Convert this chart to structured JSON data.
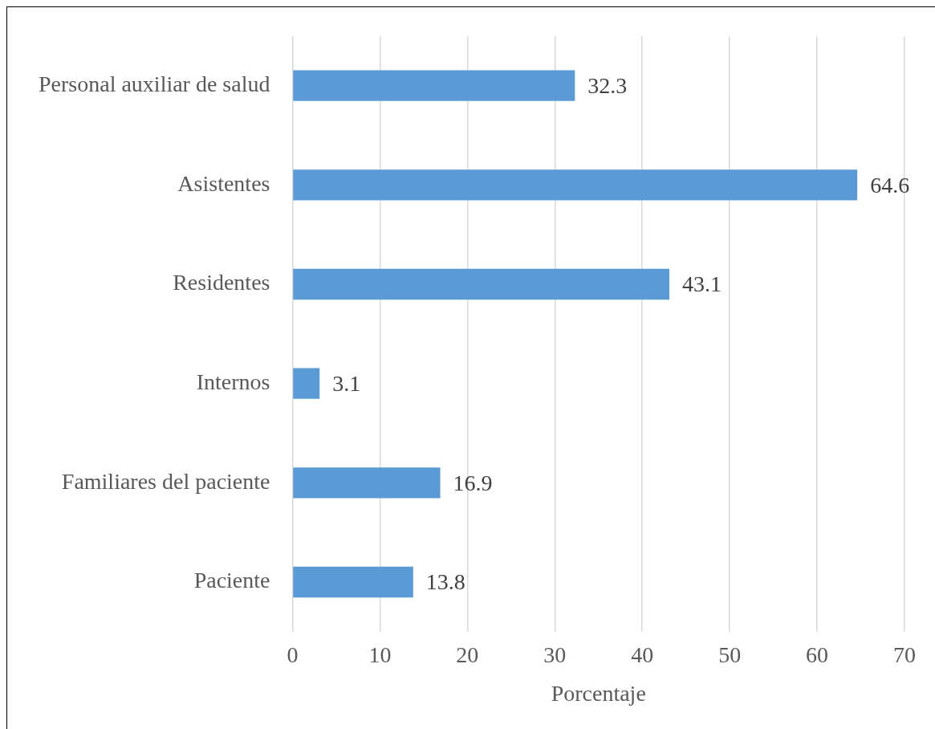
{
  "chart_data": {
    "type": "bar",
    "orientation": "horizontal",
    "xlabel": "Porcentaje",
    "categories": [
      "Personal auxiliar de salud",
      "Asistentes",
      "Residentes",
      "Internos",
      "Familiares del paciente",
      "Paciente"
    ],
    "values": [
      32.3,
      64.6,
      43.1,
      3.1,
      16.9,
      13.8
    ],
    "color": "#5b9bd5",
    "xlim": [
      0,
      70
    ],
    "xticks": [
      0,
      10,
      20,
      30,
      40,
      50,
      60,
      70
    ],
    "grid": "x",
    "data_labels": true,
    "legend": false
  }
}
